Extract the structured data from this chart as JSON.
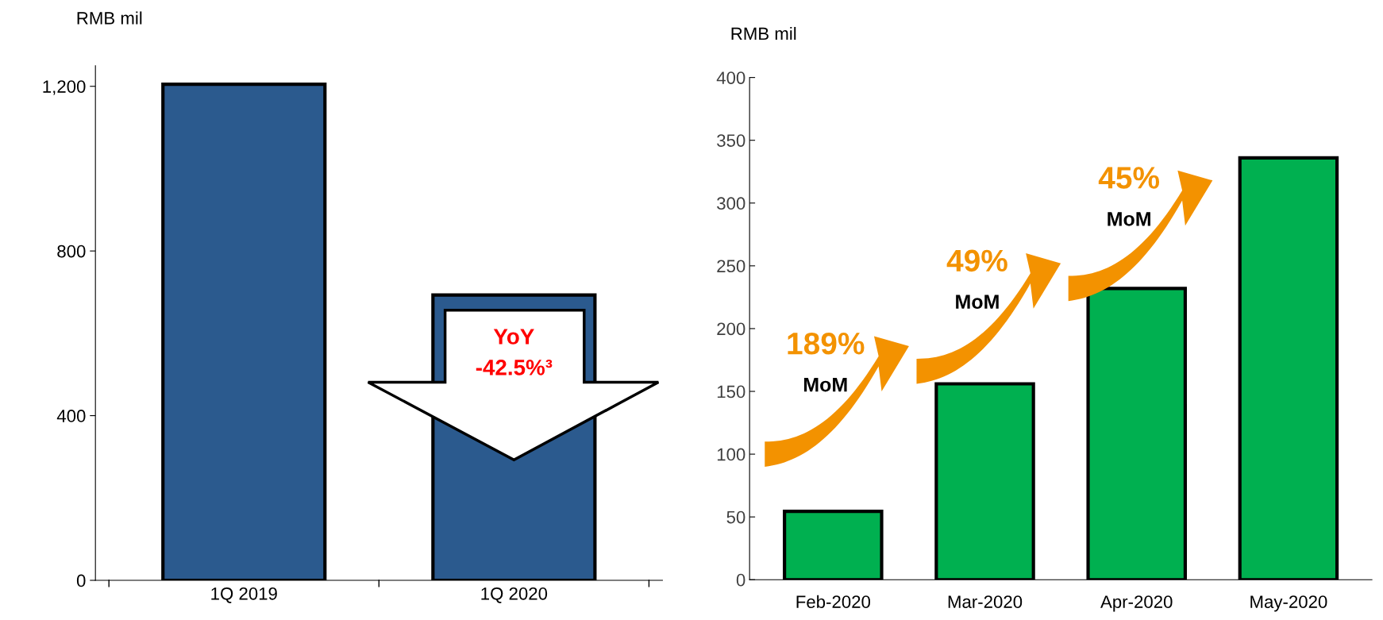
{
  "chart_data": [
    {
      "type": "bar",
      "ylabel": "RMB mil",
      "categories": [
        "1Q 2019",
        "1Q 2020"
      ],
      "series": [
        {
          "color": "#2b5a8e",
          "values": [
            1205,
            693
          ]
        }
      ],
      "ylim": [
        0,
        1250
      ],
      "yticks": [
        0,
        400,
        800,
        {
          "value": 1200,
          "label": "1,200"
        }
      ],
      "grid": false,
      "legend": false,
      "annotations": [
        "YoY",
        "-42.5%³"
      ]
    },
    {
      "type": "bar",
      "ylabel": "RMB mil",
      "categories": [
        "Feb-2020",
        "Mar-2020",
        "Apr-2020",
        "May-2020"
      ],
      "series": [
        {
          "color": "#00b050",
          "values": [
            54.5,
            156,
            232,
            336
          ]
        }
      ],
      "ylim": [
        0,
        400
      ],
      "yticks": [
        0,
        50,
        100,
        150,
        200,
        250,
        300,
        350,
        400
      ],
      "grid": false,
      "legend": false,
      "annotations": [
        "189%",
        "MoM",
        "49%",
        "MoM",
        "45%",
        "MoM"
      ]
    }
  ]
}
